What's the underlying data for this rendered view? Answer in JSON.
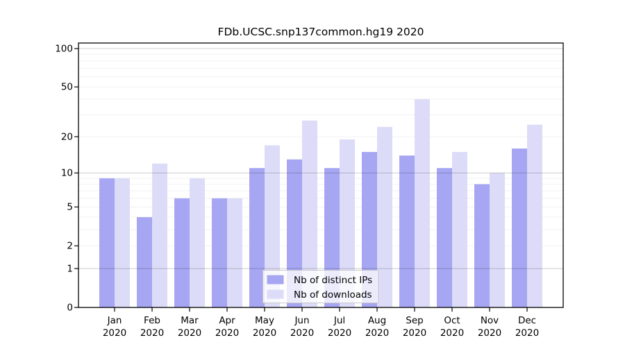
{
  "title": "FDb.UCSC.snp137common.hg19 2020",
  "chart_data": {
    "type": "bar",
    "title": "FDb.UCSC.snp137common.hg19 2020",
    "categories": [
      "Jan",
      "Feb",
      "Mar",
      "Apr",
      "May",
      "Jun",
      "Jul",
      "Aug",
      "Sep",
      "Oct",
      "Nov",
      "Dec"
    ],
    "year_label": "2020",
    "series": [
      {
        "name": "Nb of distinct IPs",
        "color": "#a6a6f2",
        "values": [
          9,
          4,
          6,
          6,
          11,
          13,
          11,
          15,
          14,
          11,
          8,
          16
        ]
      },
      {
        "name": "Nb of downloads",
        "color": "#dcdcf8",
        "values": [
          9,
          12,
          9,
          6,
          17,
          27,
          19,
          24,
          40,
          15,
          10,
          25
        ]
      }
    ],
    "yscale": "log10(1+x)",
    "ylim": [
      0,
      100
    ],
    "yticks": [
      0,
      1,
      2,
      5,
      10,
      20,
      50,
      100
    ],
    "major_gridlines": [
      1,
      10,
      100
    ],
    "minor_gridlines": [
      2,
      3,
      4,
      6,
      7,
      8,
      9,
      5,
      20,
      30,
      40,
      50,
      60,
      70,
      80,
      90
    ],
    "grid": true,
    "legend_position": "bottom-center-inside"
  },
  "colors": {
    "background": "#ffffff",
    "axis": "#000000",
    "major_grid": "rgba(0,0,0,0.18)",
    "minor_grid": "rgba(0,0,0,0.055)",
    "legend_bg": "rgba(255,255,255,0.78)",
    "legend_border": "#c8c8c8",
    "text": "#000000"
  }
}
